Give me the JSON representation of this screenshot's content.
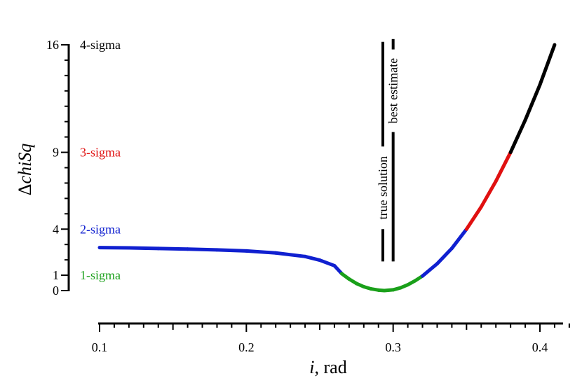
{
  "chart_data": {
    "type": "line",
    "xlabel_italic": "i",
    "xlabel_rest": ", rad",
    "ylabel_delta": "Δ",
    "ylabel_italic": "chiSq",
    "xlim": [
      0.1,
      0.41
    ],
    "ylim": [
      0,
      16
    ],
    "xticks": [
      0.1,
      0.2,
      0.3,
      0.4
    ],
    "xtick_labels": [
      "0.1",
      "0.2",
      "0.3",
      "0.4"
    ],
    "yticks": [
      0,
      1,
      4,
      9,
      16
    ],
    "ytick_labels": [
      "0",
      "1",
      "4",
      "9",
      "16"
    ],
    "grid": false,
    "series": [
      {
        "x": [
          0.1,
          0.12,
          0.14,
          0.16,
          0.18,
          0.2,
          0.22,
          0.24,
          0.25,
          0.26,
          0.265,
          0.27,
          0.275,
          0.28,
          0.285,
          0.29,
          0.294,
          0.3,
          0.305,
          0.31,
          0.315,
          0.32,
          0.33,
          0.34,
          0.35,
          0.36,
          0.37,
          0.38,
          0.39,
          0.4,
          0.41
        ],
        "y": [
          2.8,
          2.78,
          2.74,
          2.7,
          2.65,
          2.58,
          2.45,
          2.22,
          1.98,
          1.62,
          1.1,
          0.75,
          0.46,
          0.25,
          0.11,
          0.03,
          0.0,
          0.05,
          0.18,
          0.38,
          0.64,
          0.95,
          1.75,
          2.75,
          4.0,
          5.45,
          7.12,
          9.0,
          11.1,
          13.4,
          16.0
        ]
      }
    ],
    "sigma_bands": [
      {
        "label": "1-sigma",
        "level": 1,
        "color": "#1aa01a"
      },
      {
        "label": "2-sigma",
        "level": 4,
        "color": "#1020d0"
      },
      {
        "label": "3-sigma",
        "level": 9,
        "color": "#e01010"
      },
      {
        "label": "4-sigma",
        "level": 16,
        "color": "#000000"
      }
    ],
    "vertical_lines": [
      {
        "x": 0.293,
        "label": "true solution"
      },
      {
        "x": 0.3,
        "label": "best estimate"
      }
    ]
  }
}
